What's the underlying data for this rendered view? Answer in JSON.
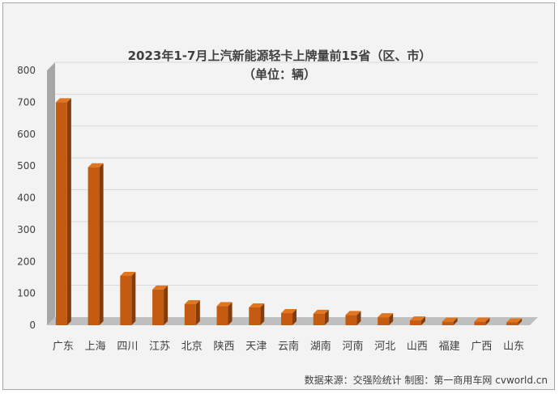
{
  "chart_data": {
    "type": "bar",
    "title": "2023年1-7月上汽新能源轻卡上牌量前15省（区、市）",
    "subtitle": "（单位：辆）",
    "categories": [
      "广东",
      "上海",
      "四川",
      "江苏",
      "北京",
      "陕西",
      "天津",
      "云南",
      "湖南",
      "河南",
      "河北",
      "山西",
      "福建",
      "广西",
      "山东"
    ],
    "values": [
      700,
      496,
      155,
      112,
      66,
      60,
      56,
      38,
      36,
      32,
      25,
      15,
      11,
      11,
      9
    ],
    "ylim": [
      0,
      800
    ],
    "yticks": [
      0,
      100,
      200,
      300,
      400,
      500,
      600,
      700,
      800
    ],
    "ytick_labels": [
      "0",
      "100",
      "200",
      "300",
      "400",
      "500",
      "600",
      "700",
      "800"
    ],
    "grid": true,
    "xlabel": "",
    "ylabel": "",
    "colors": {
      "bar_front": "#c55a11",
      "bar_side": "#843c0c",
      "bar_top": "#e0761f",
      "grid": "#d9d9d9",
      "wall": "#a6a6a6",
      "floor": "#bfbfbf",
      "text": "#404040"
    }
  },
  "source_note": "数据来源：交强险统计  制图：第一商用车网 cvworld.cn"
}
